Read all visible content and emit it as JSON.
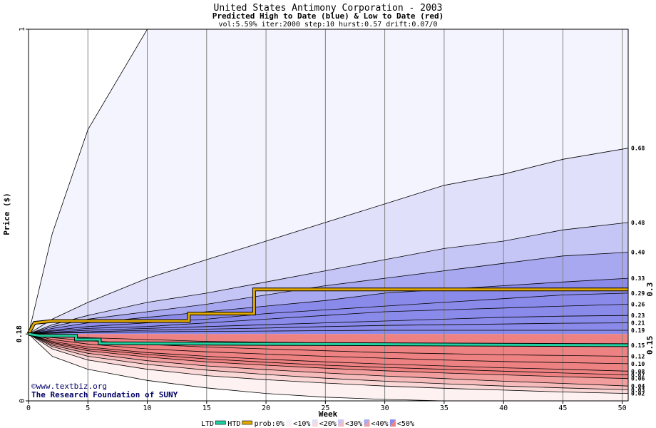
{
  "title": "United States Antimony Corporation - 2003",
  "subtitle": "Predicted High to Date (blue) &  Low to Date (red)",
  "params": "vol:5.59% iter:2000 step:10 hurst:0.57 drift:0.07/0",
  "credit": [
    "©www.textbiz.org",
    "The Research Foundation of SUNY"
  ],
  "legend": {
    "ltd": "LTD",
    "htd": "HTD",
    "prob": "prob:0%",
    "bins": [
      "<10%",
      "<20%",
      "<30%",
      "<40%",
      "<50%"
    ]
  },
  "colors": {
    "htd_line": "#e0a800",
    "ltd_line": "#20d0a0",
    "blue_bands": [
      "#f4f4fe",
      "#e0e0fb",
      "#c6c6f6",
      "#a8a8f0",
      "#8a8aea"
    ],
    "red_bands": [
      "#fdf1f1",
      "#fad8d8",
      "#f6bcbc",
      "#f29e9e",
      "#ee8282"
    ],
    "grid": "#808080"
  },
  "chart_data": {
    "type": "area",
    "title": "United States Antimony Corporation - 2003",
    "subtitle": "Predicted High to Date (blue) &  Low to Date (red)",
    "xlabel": "Week",
    "ylabel": "Price ($)",
    "xlim": [
      0,
      50.5
    ],
    "ylim": [
      0,
      1
    ],
    "xticks": [
      0,
      5,
      10,
      15,
      20,
      25,
      30,
      35,
      40,
      45,
      50
    ],
    "yticks": [
      0,
      1
    ],
    "ytick_labels": [
      "0",
      "1"
    ],
    "current_price": 0.18,
    "current_price_label": "0.18",
    "grid": "vertical",
    "weeks": [
      0,
      2,
      5,
      10,
      15,
      20,
      25,
      30,
      35,
      40,
      45,
      50.5
    ],
    "blue_series": [
      {
        "end_label": "1",
        "values": [
          0.18,
          0.45,
          0.73,
          1.0,
          1.0,
          1.0,
          1.0,
          1.0,
          1.0,
          1.0,
          1.0,
          1.0
        ]
      },
      {
        "end_label": "0.68",
        "values": [
          0.18,
          0.22,
          0.265,
          0.33,
          0.38,
          0.43,
          0.48,
          0.53,
          0.58,
          0.61,
          0.65,
          0.68
        ]
      },
      {
        "end_label": "0.48",
        "values": [
          0.18,
          0.205,
          0.23,
          0.265,
          0.29,
          0.32,
          0.35,
          0.38,
          0.41,
          0.43,
          0.46,
          0.48
        ]
      },
      {
        "end_label": "0.40",
        "values": [
          0.18,
          0.2,
          0.22,
          0.24,
          0.26,
          0.285,
          0.31,
          0.33,
          0.35,
          0.37,
          0.39,
          0.4
        ]
      },
      {
        "end_label": "0.33",
        "values": [
          0.18,
          0.195,
          0.21,
          0.225,
          0.24,
          0.255,
          0.27,
          0.29,
          0.3,
          0.31,
          0.32,
          0.33
        ]
      },
      {
        "end_label": "0.29",
        "values": [
          0.18,
          0.19,
          0.2,
          0.21,
          0.22,
          0.235,
          0.245,
          0.255,
          0.265,
          0.275,
          0.285,
          0.29
        ]
      },
      {
        "end_label": "0.26",
        "values": [
          0.18,
          0.188,
          0.195,
          0.2,
          0.21,
          0.22,
          0.23,
          0.24,
          0.245,
          0.25,
          0.255,
          0.26
        ]
      },
      {
        "end_label": "0.23",
        "values": [
          0.18,
          0.185,
          0.19,
          0.195,
          0.2,
          0.205,
          0.21,
          0.215,
          0.22,
          0.225,
          0.228,
          0.23
        ]
      },
      {
        "end_label": "0.21",
        "values": [
          0.18,
          0.183,
          0.186,
          0.19,
          0.193,
          0.196,
          0.2,
          0.203,
          0.205,
          0.207,
          0.209,
          0.21
        ]
      },
      {
        "end_label": "0.19",
        "values": [
          0.18,
          0.182,
          0.184,
          0.186,
          0.187,
          0.188,
          0.189,
          0.19,
          0.19,
          0.19,
          0.19,
          0.19
        ]
      }
    ],
    "red_series": [
      {
        "end_label": "0.15",
        "values": [
          0.18,
          0.175,
          0.17,
          0.165,
          0.16,
          0.158,
          0.156,
          0.154,
          0.153,
          0.152,
          0.151,
          0.15
        ]
      },
      {
        "end_label": "0.12",
        "values": [
          0.18,
          0.17,
          0.162,
          0.152,
          0.145,
          0.14,
          0.135,
          0.13,
          0.127,
          0.124,
          0.122,
          0.12
        ]
      },
      {
        "end_label": "0.10",
        "values": [
          0.18,
          0.165,
          0.153,
          0.14,
          0.132,
          0.126,
          0.12,
          0.115,
          0.11,
          0.106,
          0.103,
          0.1
        ]
      },
      {
        "end_label": "0.08",
        "values": [
          0.18,
          0.16,
          0.145,
          0.13,
          0.12,
          0.112,
          0.105,
          0.099,
          0.094,
          0.089,
          0.085,
          0.08
        ]
      },
      {
        "end_label": "0.07",
        "values": [
          0.18,
          0.157,
          0.14,
          0.125,
          0.113,
          0.104,
          0.096,
          0.09,
          0.085,
          0.08,
          0.075,
          0.07
        ]
      },
      {
        "end_label": "0.06",
        "values": [
          0.18,
          0.154,
          0.135,
          0.118,
          0.105,
          0.096,
          0.088,
          0.081,
          0.075,
          0.07,
          0.065,
          0.06
        ]
      },
      {
        "end_label": "0.04",
        "values": [
          0.18,
          0.15,
          0.128,
          0.108,
          0.094,
          0.084,
          0.075,
          0.067,
          0.06,
          0.053,
          0.047,
          0.04
        ]
      },
      {
        "end_label": "0.03",
        "values": [
          0.18,
          0.146,
          0.12,
          0.098,
          0.083,
          0.071,
          0.061,
          0.053,
          0.046,
          0.04,
          0.035,
          0.03
        ]
      },
      {
        "end_label": "0.02",
        "values": [
          0.18,
          0.14,
          0.11,
          0.085,
          0.068,
          0.057,
          0.048,
          0.04,
          0.034,
          0.029,
          0.024,
          0.02
        ]
      },
      {
        "end_label": "0",
        "values": [
          0.18,
          0.12,
          0.085,
          0.055,
          0.035,
          0.02,
          0.01,
          0.004,
          0.0,
          0.0,
          0.0,
          0.0
        ]
      }
    ],
    "htd_series": {
      "name": "HTD",
      "end_label": "0.3",
      "points": [
        [
          0,
          0.18
        ],
        [
          0.5,
          0.21
        ],
        [
          2,
          0.215
        ],
        [
          10,
          0.215
        ],
        [
          13.5,
          0.215
        ],
        [
          13.5,
          0.235
        ],
        [
          19,
          0.235
        ],
        [
          19,
          0.3
        ],
        [
          50.5,
          0.3
        ]
      ]
    },
    "ltd_series": {
      "name": "LTD",
      "end_label": "0.15",
      "points": [
        [
          0,
          0.18
        ],
        [
          1,
          0.175
        ],
        [
          4,
          0.175
        ],
        [
          4,
          0.165
        ],
        [
          6,
          0.165
        ],
        [
          6,
          0.155
        ],
        [
          50.5,
          0.15
        ]
      ]
    }
  }
}
